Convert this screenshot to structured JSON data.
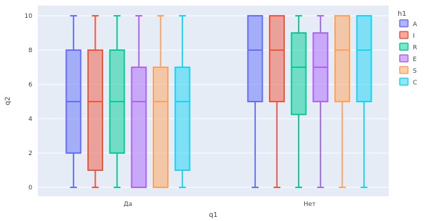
{
  "chart_data": {
    "type": "box",
    "xlabel": "q1",
    "ylabel": "q2",
    "ylim": [
      -0.5,
      10.6
    ],
    "yticks": [
      0,
      2,
      4,
      6,
      8,
      10
    ],
    "grid": true,
    "legend_position": "top-right",
    "legend_title": "h1",
    "categories": [
      "Да",
      "Нет"
    ],
    "series": [
      {
        "name": "A",
        "color": "#636efa",
        "boxes": [
          {
            "min": 0,
            "q1": 2,
            "median": 5,
            "q3": 8,
            "max": 10
          },
          {
            "min": 0,
            "q1": 5,
            "median": 8,
            "q3": 10,
            "max": 10
          }
        ]
      },
      {
        "name": "I",
        "color": "#ef553b",
        "boxes": [
          {
            "min": 0,
            "q1": 1,
            "median": 5,
            "q3": 8,
            "max": 10
          },
          {
            "min": 0,
            "q1": 5,
            "median": 8,
            "q3": 10,
            "max": 10
          }
        ]
      },
      {
        "name": "R",
        "color": "#00cc96",
        "boxes": [
          {
            "min": 0,
            "q1": 2,
            "median": 5,
            "q3": 8,
            "max": 10
          },
          {
            "min": 0,
            "q1": 4.25,
            "median": 7,
            "q3": 9,
            "max": 10
          }
        ]
      },
      {
        "name": "E",
        "color": "#ab63fa",
        "boxes": [
          {
            "min": 0,
            "q1": 0,
            "median": 5,
            "q3": 7,
            "max": 10
          },
          {
            "min": 0,
            "q1": 5,
            "median": 7,
            "q3": 9,
            "max": 10
          }
        ]
      },
      {
        "name": "S",
        "color": "#ffa15a",
        "boxes": [
          {
            "min": 0,
            "q1": 0,
            "median": 5,
            "q3": 7,
            "max": 10
          },
          {
            "min": 0,
            "q1": 5,
            "median": 8,
            "q3": 10,
            "max": 10
          }
        ]
      },
      {
        "name": "C",
        "color": "#19d3f3",
        "boxes": [
          {
            "min": 0,
            "q1": 1,
            "median": 5,
            "q3": 7,
            "max": 10
          },
          {
            "min": 0,
            "q1": 5,
            "median": 8,
            "q3": 10,
            "max": 10
          }
        ]
      }
    ]
  }
}
